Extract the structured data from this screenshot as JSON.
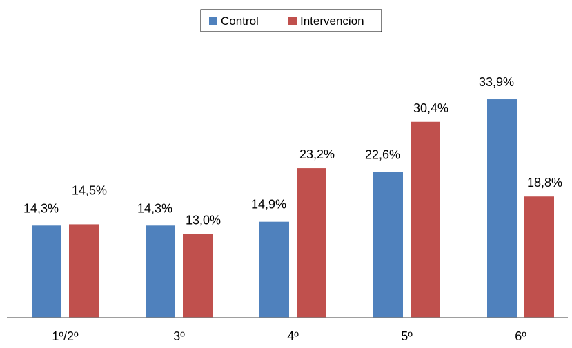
{
  "chart_data": {
    "type": "bar",
    "categories": [
      "1º/2º",
      "3º",
      "4º",
      "5º",
      "6º"
    ],
    "series": [
      {
        "name": "Control",
        "values": [
          14.3,
          14.3,
          14.9,
          22.6,
          33.9
        ],
        "labels": [
          "14,3%",
          "14,3%",
          "14,9%",
          "22,6%",
          "33,9%"
        ],
        "color": "#4f81bd"
      },
      {
        "name": "Intervencion",
        "values": [
          14.5,
          13.0,
          23.2,
          30.4,
          18.8
        ],
        "labels": [
          "14,5%",
          "13,0%",
          "23,2%",
          "30,4%",
          "18,8%"
        ],
        "color": "#c0504d"
      }
    ],
    "ylim": [
      0,
      40
    ],
    "grid": false,
    "legend_position": "top-center"
  }
}
